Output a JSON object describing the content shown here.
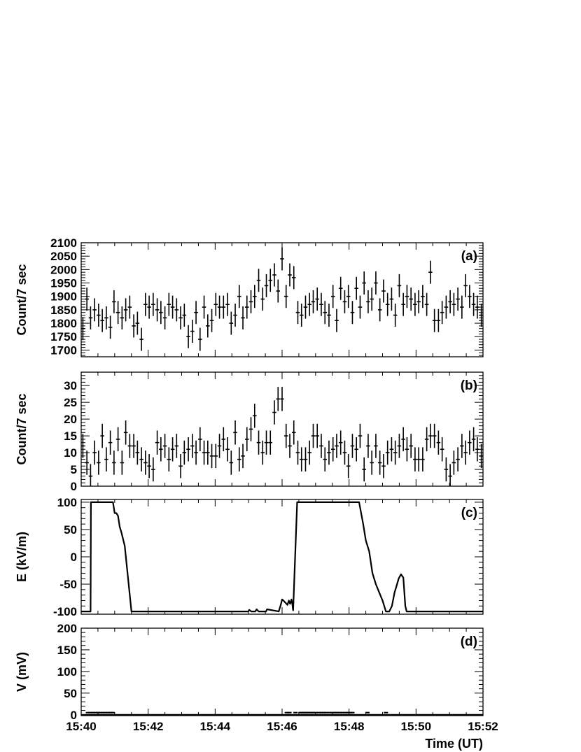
{
  "chart_data": [
    {
      "id": "a",
      "type": "scatter",
      "panel_label": "(a)",
      "ylabel": "Count/7 sec",
      "ylim": [
        1675,
        2100
      ],
      "yticks": [
        1700,
        1750,
        1800,
        1850,
        1900,
        1950,
        2000,
        2050,
        2100
      ],
      "xlim_minutes": [
        0,
        12
      ],
      "error_bars": true,
      "x_minutes": [
        0.05,
        0.17,
        0.28,
        0.4,
        0.52,
        0.63,
        0.75,
        0.87,
        0.98,
        1.1,
        1.22,
        1.33,
        1.45,
        1.57,
        1.68,
        1.8,
        1.92,
        2.03,
        2.15,
        2.27,
        2.38,
        2.5,
        2.62,
        2.73,
        2.85,
        2.97,
        3.08,
        3.2,
        3.32,
        3.43,
        3.55,
        3.67,
        3.78,
        3.9,
        4.02,
        4.13,
        4.25,
        4.37,
        4.48,
        4.6,
        4.72,
        4.83,
        4.95,
        5.07,
        5.18,
        5.3,
        5.42,
        5.53,
        5.65,
        5.77,
        5.88,
        6.0,
        6.12,
        6.23,
        6.35,
        6.47,
        6.58,
        6.7,
        6.82,
        6.93,
        7.05,
        7.17,
        7.28,
        7.4,
        7.52,
        7.63,
        7.75,
        7.87,
        7.98,
        8.1,
        8.22,
        8.33,
        8.45,
        8.57,
        8.68,
        8.8,
        8.92,
        9.03,
        9.15,
        9.27,
        9.38,
        9.5,
        9.62,
        9.73,
        9.85,
        9.97,
        10.08,
        10.2,
        10.32,
        10.43,
        10.55,
        10.67,
        10.78,
        10.9,
        11.02,
        11.13,
        11.25,
        11.37,
        11.48,
        11.6,
        11.72,
        11.83,
        11.95
      ],
      "y": [
        1780,
        1890,
        1820,
        1850,
        1830,
        1810,
        1820,
        1785,
        1880,
        1840,
        1820,
        1850,
        1860,
        1790,
        1800,
        1740,
        1870,
        1860,
        1870,
        1850,
        1840,
        1820,
        1870,
        1860,
        1850,
        1820,
        1830,
        1750,
        1770,
        1840,
        1740,
        1860,
        1790,
        1810,
        1870,
        1860,
        1860,
        1870,
        1800,
        1830,
        1900,
        1820,
        1860,
        1880,
        1900,
        1960,
        1890,
        1940,
        1960,
        1980,
        1920,
        2040,
        1900,
        1980,
        1970,
        1840,
        1830,
        1860,
        1870,
        1880,
        1890,
        1870,
        1840,
        1830,
        1900,
        1810,
        1930,
        1880,
        1900,
        1840,
        1930,
        1860,
        1950,
        1880,
        1890,
        1950,
        1850,
        1920,
        1870,
        1890,
        1830,
        1940,
        1870,
        1900,
        1890,
        1870,
        1880,
        1900,
        1870,
        1990,
        1810,
        1810,
        1840,
        1860,
        1880,
        1870,
        1890,
        1860,
        1940,
        1900,
        1870,
        1860,
        1830
      ],
      "yerr": 43
    },
    {
      "id": "b",
      "type": "scatter",
      "panel_label": "(b)",
      "ylabel": "Count/7 sec",
      "ylim": [
        0,
        34
      ],
      "yticks": [
        0,
        5,
        10,
        15,
        20,
        25,
        30
      ],
      "xlim_minutes": [
        0,
        12
      ],
      "error_bars": true,
      "x_minutes": [
        0.05,
        0.17,
        0.28,
        0.4,
        0.52,
        0.63,
        0.75,
        0.87,
        0.98,
        1.1,
        1.22,
        1.33,
        1.45,
        1.57,
        1.68,
        1.8,
        1.92,
        2.03,
        2.15,
        2.27,
        2.38,
        2.5,
        2.62,
        2.73,
        2.85,
        2.97,
        3.08,
        3.2,
        3.32,
        3.43,
        3.55,
        3.67,
        3.78,
        3.9,
        4.02,
        4.13,
        4.25,
        4.37,
        4.48,
        4.6,
        4.72,
        4.83,
        4.95,
        5.07,
        5.18,
        5.3,
        5.42,
        5.53,
        5.65,
        5.77,
        5.88,
        6.0,
        6.12,
        6.23,
        6.35,
        6.47,
        6.58,
        6.7,
        6.82,
        6.93,
        7.05,
        7.17,
        7.28,
        7.4,
        7.52,
        7.63,
        7.75,
        7.87,
        7.98,
        8.1,
        8.22,
        8.33,
        8.45,
        8.57,
        8.68,
        8.8,
        8.92,
        9.03,
        9.15,
        9.27,
        9.38,
        9.5,
        9.62,
        9.73,
        9.85,
        9.97,
        10.08,
        10.2,
        10.32,
        10.43,
        10.55,
        10.67,
        10.78,
        10.9,
        11.02,
        11.13,
        11.25,
        11.37,
        11.48,
        11.6,
        11.72,
        11.83,
        11.95
      ],
      "y": [
        12,
        7,
        3,
        10,
        7,
        15,
        8,
        13,
        7,
        14,
        7,
        16,
        12,
        12,
        10,
        8,
        7,
        6,
        5,
        13,
        11,
        12,
        8,
        11,
        12,
        6,
        10,
        11,
        12,
        10,
        14,
        10,
        10,
        9,
        9,
        12,
        14,
        11,
        7,
        16,
        8,
        9,
        14,
        17,
        21,
        13,
        10,
        13,
        13,
        22,
        26,
        26,
        15,
        12,
        16,
        10,
        8,
        8,
        10,
        15,
        15,
        12,
        8,
        10,
        11,
        12,
        13,
        10,
        6,
        12,
        11,
        15,
        5,
        12,
        7,
        12,
        7,
        6,
        10,
        11,
        10,
        12,
        14,
        11,
        12,
        8,
        8,
        8,
        14,
        15,
        15,
        13,
        11,
        5,
        3,
        7,
        8,
        12,
        10,
        13,
        14,
        11,
        9
      ],
      "yerr": 3.6
    },
    {
      "id": "c",
      "type": "line",
      "panel_label": "(c)",
      "ylabel": "E (kV/m)",
      "ylim": [
        -105,
        105
      ],
      "yticks": [
        -100,
        -50,
        0,
        50,
        100
      ],
      "xlim_minutes": [
        0,
        12
      ],
      "x_minutes": [
        0,
        0.28,
        0.29,
        0.4,
        0.95,
        1.0,
        1.05,
        1.1,
        1.15,
        1.2,
        1.3,
        1.4,
        1.5,
        1.6,
        3.5,
        4.99,
        5.02,
        5.08,
        5.2,
        5.24,
        5.3,
        5.52,
        5.55,
        5.9,
        5.96,
        6.0,
        6.04,
        6.1,
        6.16,
        6.2,
        6.24,
        6.28,
        6.31,
        6.32,
        6.33,
        6.45,
        8.2,
        8.3,
        8.42,
        8.5,
        8.6,
        8.7,
        8.8,
        8.9,
        9.0,
        9.1,
        9.2,
        9.28,
        9.36,
        9.41,
        9.48,
        9.55,
        9.62,
        9.68,
        9.72,
        9.78,
        12
      ],
      "y": [
        -100,
        -100,
        100,
        100,
        100,
        80,
        80,
        75,
        55,
        45,
        20,
        -40,
        -100,
        -100,
        -100,
        -100,
        -97,
        -100,
        -100,
        -96,
        -100,
        -100,
        -96,
        -100,
        -88,
        -78,
        -80,
        -84,
        -88,
        -80,
        -86,
        -78,
        -88,
        -94,
        -98,
        100,
        100,
        100,
        60,
        30,
        10,
        -30,
        -50,
        -65,
        -80,
        -100,
        -100,
        -90,
        -65,
        -55,
        -40,
        -32,
        -38,
        -90,
        -100,
        -100,
        -100
      ]
    },
    {
      "id": "d",
      "type": "scatter",
      "panel_label": "(d)",
      "ylabel": "V (mV)",
      "ylim": [
        -2,
        200
      ],
      "yticks": [
        0,
        50,
        100,
        150,
        200
      ],
      "xlim_minutes": [
        0,
        12
      ],
      "x_minutes": [
        0.2,
        0.27,
        0.35,
        0.42,
        0.5,
        0.57,
        0.64,
        0.72,
        0.8,
        0.87,
        0.94,
        6.14,
        6.22,
        6.4,
        6.55,
        6.6,
        6.66,
        6.72,
        6.78,
        6.85,
        6.92,
        7.0,
        7.1,
        7.18,
        7.25,
        7.32,
        7.42,
        7.5,
        7.58,
        7.65,
        7.72,
        7.8,
        7.88,
        7.95,
        8.02,
        8.1,
        8.55,
        9.1
      ],
      "y": [
        5,
        5,
        5,
        5,
        5,
        5,
        5,
        5,
        5,
        5,
        5,
        5,
        5,
        5,
        5,
        5,
        5,
        5,
        5,
        5,
        5,
        5,
        5,
        5,
        5,
        5,
        5,
        5,
        5,
        5,
        5,
        5,
        5,
        5,
        5,
        5,
        5,
        5
      ],
      "baseline": 0
    }
  ],
  "x_axis": {
    "ticks_minutes": [
      0,
      2,
      4,
      6,
      8,
      10,
      12
    ],
    "tick_labels": [
      "15:40",
      "15:42",
      "15:44",
      "15:46",
      "15:48",
      "15:50",
      "15:52"
    ],
    "title": "Time (UT)"
  }
}
